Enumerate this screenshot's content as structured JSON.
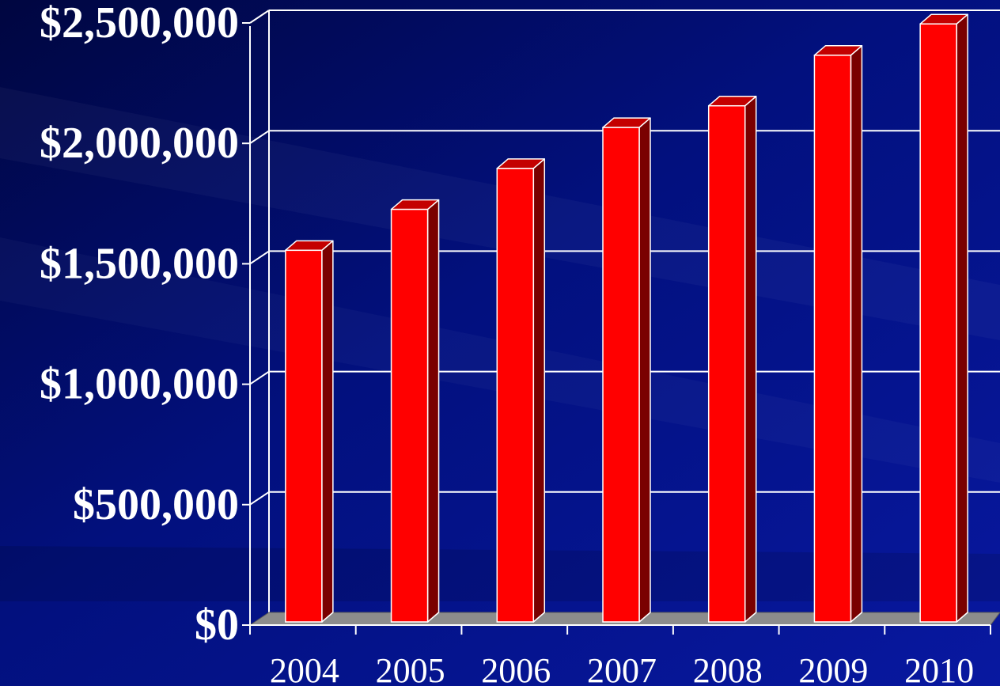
{
  "chart_data": {
    "type": "bar",
    "categories": [
      "2004",
      "2005",
      "2006",
      "2007",
      "2008",
      "2009",
      "2010"
    ],
    "values": [
      1510000,
      1680000,
      1850000,
      2020000,
      2110000,
      2320000,
      2450000
    ],
    "ylim": [
      0,
      2500000
    ],
    "yticks": [
      "$0",
      "$500,000",
      "$1,000,000",
      "$1,500,000",
      "$2,000,000",
      "$2,500,000"
    ],
    "grid": true,
    "style": "3d-column",
    "colors": {
      "background": "#020a6e",
      "bar_front": "#ff0000",
      "bar_side": "#7a0000",
      "bar_top": "#c40000",
      "floor": "#8c8c8c",
      "grid": "#ffffff",
      "text": "#ffffff"
    }
  }
}
